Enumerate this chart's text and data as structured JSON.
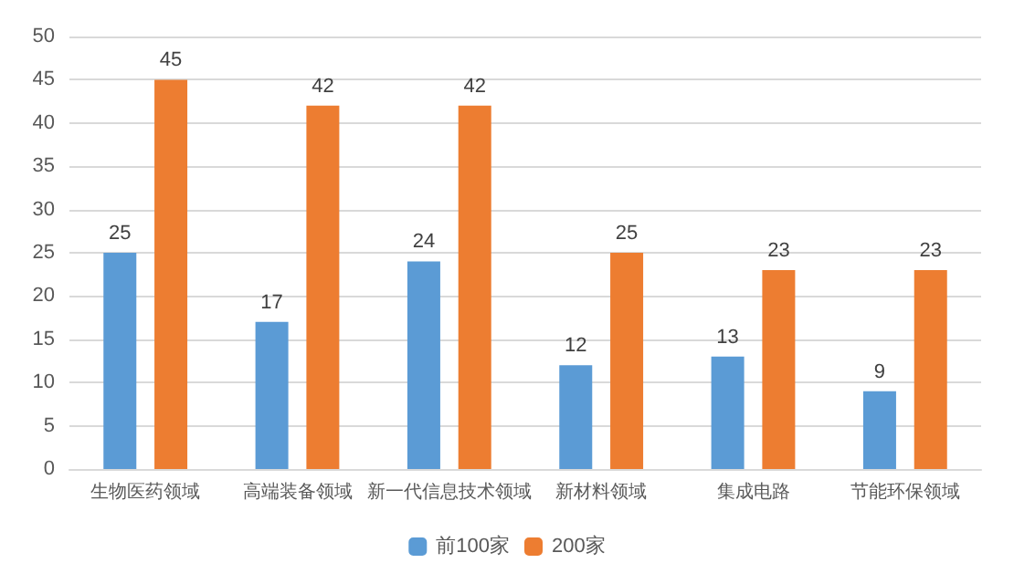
{
  "chart_data": {
    "type": "bar",
    "categories": [
      "生物医药领域",
      "高端装备领域",
      "新一代信息技术领域",
      "新材料领域",
      "集成电路",
      "节能环保领域"
    ],
    "series": [
      {
        "name": "前100家",
        "color": "#5b9bd5",
        "values": [
          25,
          17,
          24,
          12,
          13,
          9
        ]
      },
      {
        "name": "200家",
        "color": "#ed7d31",
        "values": [
          45,
          42,
          42,
          25,
          23,
          23
        ]
      }
    ],
    "ylim": [
      0,
      50
    ],
    "yticks": [
      0,
      5,
      10,
      15,
      20,
      25,
      30,
      35,
      40,
      45,
      50
    ],
    "grid": "y",
    "legend": "bottom",
    "data_labels": true
  }
}
